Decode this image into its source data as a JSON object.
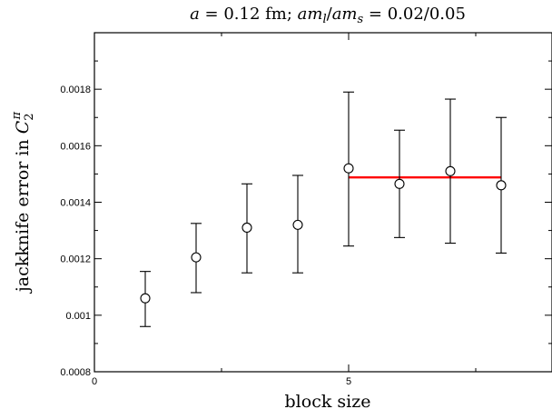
{
  "chart_data": {
    "type": "scatter",
    "title": "a = 0.12 fm; am_l/am_s = 0.02/0.05",
    "xlabel": "block size",
    "ylabel": "jackknife error in C_2^π",
    "xlim": [
      0,
      9
    ],
    "ylim": [
      0.0008,
      0.002
    ],
    "x_ticks": [
      0,
      5
    ],
    "x_tick_labels": [
      "0",
      "5"
    ],
    "y_ticks": [
      0.0008,
      0.001,
      0.0012,
      0.0014,
      0.0016,
      0.0018
    ],
    "y_tick_labels": [
      "0.0008",
      "0.001",
      "0.0012",
      "0.0014",
      "0.0016",
      "0.0018"
    ],
    "grid": false,
    "series": [
      {
        "marker": "open-circle",
        "color": "#000000",
        "points": [
          {
            "x": 1,
            "y": 0.00106,
            "err_low": 0.00096,
            "err_high": 0.001155
          },
          {
            "x": 2,
            "y": 0.001205,
            "err_low": 0.00108,
            "err_high": 0.001325
          },
          {
            "x": 3,
            "y": 0.00131,
            "err_low": 0.00115,
            "err_high": 0.001465
          },
          {
            "x": 4,
            "y": 0.00132,
            "err_low": 0.00115,
            "err_high": 0.001495
          },
          {
            "x": 5,
            "y": 0.00152,
            "err_low": 0.001245,
            "err_high": 0.00179
          },
          {
            "x": 6,
            "y": 0.001465,
            "err_low": 0.001275,
            "err_high": 0.001655
          },
          {
            "x": 7,
            "y": 0.00151,
            "err_low": 0.001255,
            "err_high": 0.001765
          },
          {
            "x": 8,
            "y": 0.00146,
            "err_low": 0.00122,
            "err_high": 0.0017
          }
        ]
      }
    ],
    "fit_line": {
      "x_start": 5,
      "x_end": 8,
      "y": 0.001488,
      "color": "#ff0000"
    }
  }
}
